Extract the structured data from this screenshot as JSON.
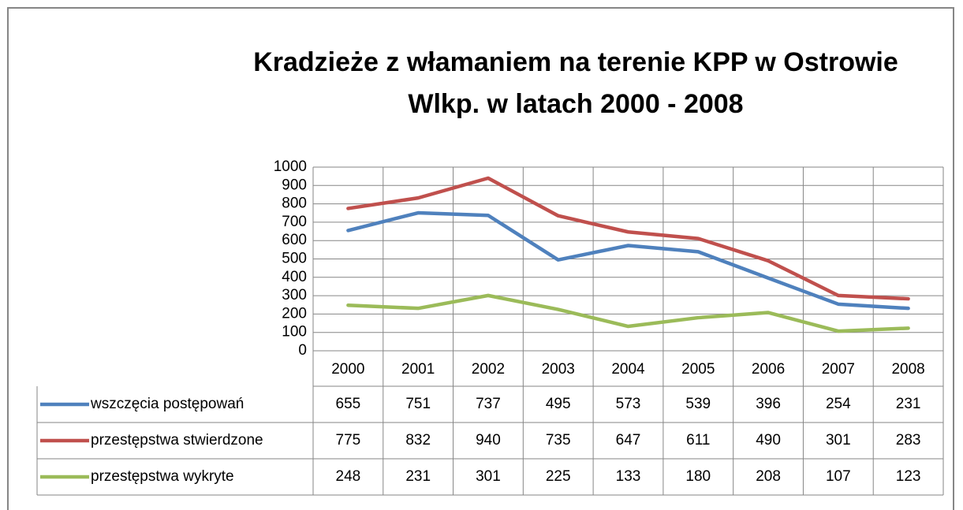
{
  "chart_data": {
    "type": "line",
    "title": [
      "Kradzieże z włamaniem na terenie KPP w Ostrowie",
      "Wlkp.  w latach 2000 - 2008"
    ],
    "categories": [
      "2000",
      "2001",
      "2002",
      "2003",
      "2004",
      "2005",
      "2006",
      "2007",
      "2008"
    ],
    "series": [
      {
        "name": "wszczęcia postępowań",
        "color": "#4f81bd",
        "values": [
          655,
          751,
          737,
          495,
          573,
          539,
          396,
          254,
          231
        ]
      },
      {
        "name": "przestępstwa stwierdzone",
        "color": "#c0504d",
        "values": [
          775,
          832,
          940,
          735,
          647,
          611,
          490,
          301,
          283
        ]
      },
      {
        "name": "przestępstwa wykryte",
        "color": "#9bbb59",
        "values": [
          248,
          231,
          301,
          225,
          133,
          180,
          208,
          107,
          123
        ]
      }
    ],
    "ylim": [
      0,
      1000
    ],
    "yticks": [
      0,
      100,
      200,
      300,
      400,
      500,
      600,
      700,
      800,
      900,
      1000
    ],
    "grid": true,
    "data_table": true
  }
}
